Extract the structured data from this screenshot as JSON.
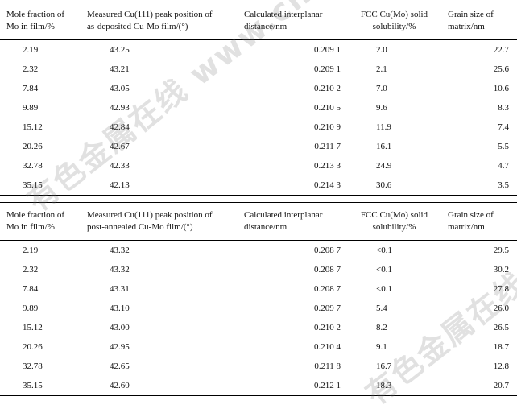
{
  "headers_1": [
    "Mole fraction of\nMo in film/%",
    "Measured Cu(111) peak position of\nas-deposited Cu-Mo film/(°)",
    "Calculated interplanar\ndistance/nm",
    "FCC Cu(Mo) solid\nsolubility/%",
    "Grain size of\nmatrix/nm"
  ],
  "rows_1": [
    [
      "2.19",
      "43.25",
      "0.209 1",
      "2.0",
      "22.7"
    ],
    [
      "2.32",
      "43.21",
      "0.209 1",
      "2.1",
      "25.6"
    ],
    [
      "7.84",
      "43.05",
      "0.210 2",
      "7.0",
      "10.6"
    ],
    [
      "9.89",
      "42.93",
      "0.210 5",
      "9.6",
      "8.3"
    ],
    [
      "15.12",
      "42.84",
      "0.210 9",
      "11.9",
      "7.4"
    ],
    [
      "20.26",
      "42.67",
      "0.211 7",
      "16.1",
      "5.5"
    ],
    [
      "32.78",
      "42.33",
      "0.213 3",
      "24.9",
      "4.7"
    ],
    [
      "35.15",
      "42.13",
      "0.214 3",
      "30.6",
      "3.5"
    ]
  ],
  "headers_2": [
    "Mole fraction of\nMo in film/%",
    "Measured Cu(111) peak position of\npost-annealed Cu-Mo film/(°)",
    "Calculated interplanar\ndistance/nm",
    "FCC Cu(Mo) solid\nsolubility/%",
    "Grain size of\nmatrix/nm"
  ],
  "rows_2": [
    [
      "2.19",
      "43.32",
      "0.208 7",
      "<0.1",
      "29.5"
    ],
    [
      "2.32",
      "43.32",
      "0.208 7",
      "<0.1",
      "30.2"
    ],
    [
      "7.84",
      "43.31",
      "0.208 7",
      "<0.1",
      "27.8"
    ],
    [
      "9.89",
      "43.10",
      "0.209 7",
      "5.4",
      "26.0"
    ],
    [
      "15.12",
      "43.00",
      "0.210 2",
      "8.2",
      "26.5"
    ],
    [
      "20.26",
      "42.95",
      "0.210 4",
      "9.1",
      "18.7"
    ],
    [
      "32.78",
      "42.65",
      "0.211 8",
      "16.7",
      "12.8"
    ],
    [
      "35.15",
      "42.60",
      "0.212 1",
      "18.3",
      "20.7"
    ]
  ],
  "watermarks": [
    "有色金属在线 www.cnnmol.com",
    "有色金属在线 www.cnnmol.com"
  ]
}
